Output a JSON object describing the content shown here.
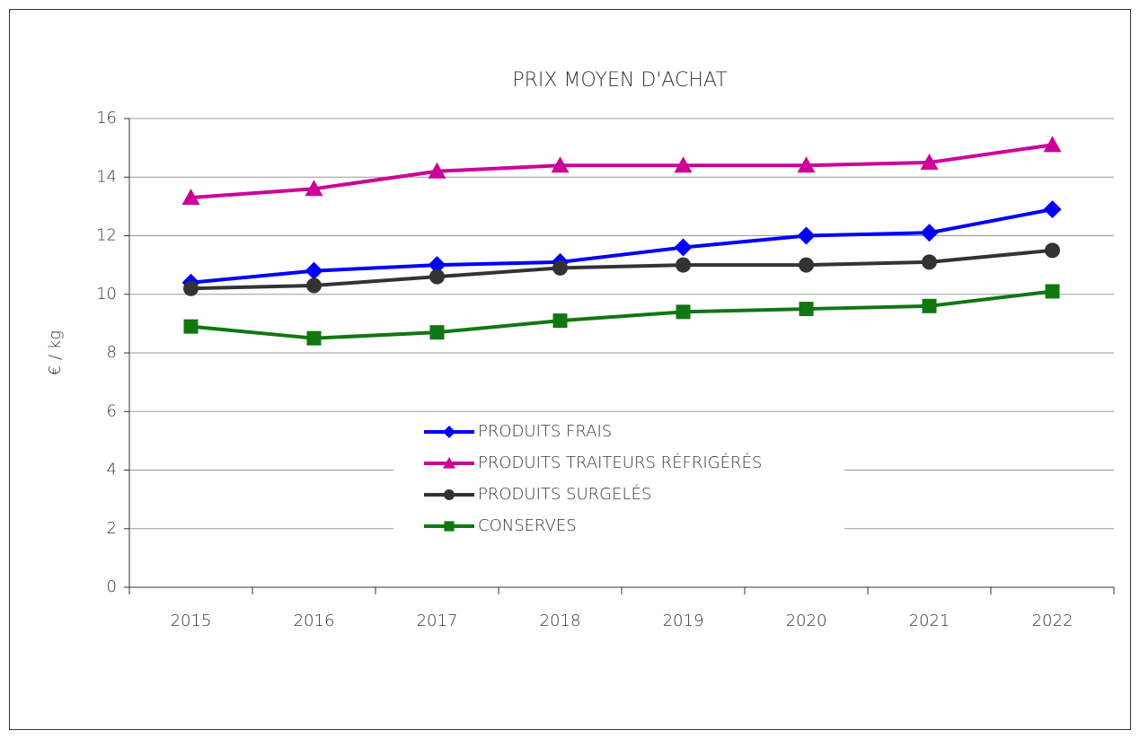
{
  "chart_data": {
    "type": "line",
    "title": "PRIX MOYEN D'ACHAT",
    "y_label": "€ / kg",
    "categories": [
      "2015",
      "2016",
      "2017",
      "2018",
      "2019",
      "2020",
      "2021",
      "2022"
    ],
    "series": [
      {
        "name": "PRODUITS FRAIS",
        "color": "#0000ff",
        "marker": "diamond",
        "values": [
          10.4,
          10.8,
          11.0,
          11.1,
          11.6,
          12.0,
          12.1,
          12.9
        ]
      },
      {
        "name": "PRODUITS TRAITEURS RÉFRIGÉRÉS",
        "color": "#cc0099",
        "marker": "triangle",
        "values": [
          13.3,
          13.6,
          14.2,
          14.4,
          14.4,
          14.4,
          14.5,
          15.1
        ]
      },
      {
        "name": "PRODUITS SURGELÉS",
        "color": "#333333",
        "marker": "circle",
        "values": [
          10.2,
          10.3,
          10.6,
          10.9,
          11.0,
          11.0,
          11.1,
          11.5
        ]
      },
      {
        "name": "CONSERVES",
        "color": "#117711",
        "marker": "square",
        "values": [
          8.9,
          8.5,
          8.7,
          9.1,
          9.4,
          9.5,
          9.6,
          10.1
        ]
      }
    ],
    "ylim": [
      0,
      16
    ],
    "yticks": [
      0,
      2,
      4,
      6,
      8,
      10,
      12,
      14,
      16
    ],
    "grid": true,
    "legend": "center"
  }
}
